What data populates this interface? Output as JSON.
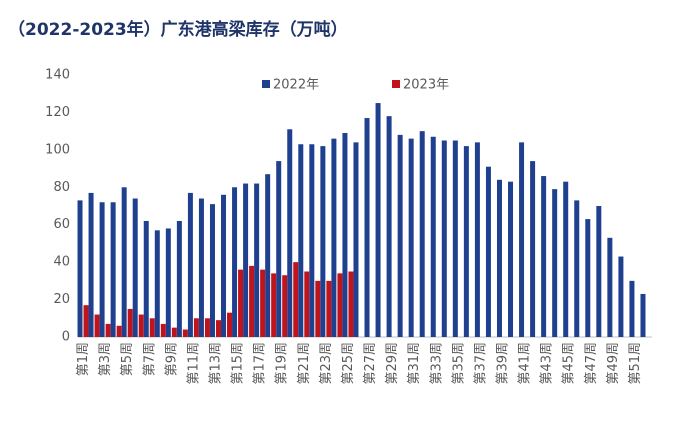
{
  "chart_data": {
    "type": "bar",
    "title": "（2022-2023年）广东港高梁库存（万吨）",
    "categories": [
      "第1周",
      null,
      "第3周",
      null,
      "第5周",
      null,
      "第7周",
      null,
      "第9周",
      null,
      "第11周",
      null,
      "第13周",
      null,
      "第15周",
      null,
      "第17周",
      null,
      "第19周",
      null,
      "第21周",
      null,
      "第23周",
      null,
      "第25周",
      null,
      "第27周",
      null,
      "第29周",
      null,
      "第31周",
      null,
      "第33周",
      null,
      "第35周",
      null,
      "第37周",
      null,
      "第39周",
      null,
      "第41周",
      null,
      "第43周",
      null,
      "第45周",
      null,
      "第47周",
      null,
      "第49周",
      null,
      "第51周",
      null
    ],
    "series": [
      {
        "name": "2022年",
        "color": "#1f3f8f",
        "values": [
          73,
          77,
          72,
          72,
          80,
          74,
          62,
          57,
          58,
          62,
          77,
          74,
          71,
          76,
          80,
          82,
          82,
          87,
          94,
          111,
          103,
          103,
          102,
          106,
          109,
          104,
          117,
          125,
          118,
          108,
          106,
          110,
          107,
          105,
          105,
          102,
          104,
          91,
          84,
          83,
          104,
          94,
          86,
          79,
          83,
          73,
          63,
          70,
          53,
          43,
          30,
          23
        ]
      },
      {
        "name": "2023年",
        "color": "#c0141c",
        "values": [
          17,
          12,
          7,
          6,
          15,
          12,
          10,
          7,
          5,
          4,
          10,
          10,
          9,
          13,
          36,
          38,
          36,
          34,
          33,
          40,
          35,
          30,
          30,
          34,
          35,
          null,
          null,
          null,
          null,
          null,
          null,
          null,
          null,
          null,
          null,
          null,
          null,
          null,
          null,
          null,
          null,
          null,
          null,
          null,
          null,
          null,
          null,
          null,
          null,
          null,
          null,
          null
        ]
      }
    ],
    "ylim": [
      0,
      140
    ],
    "yticks": [
      0,
      20,
      40,
      60,
      80,
      100,
      120,
      140
    ]
  }
}
